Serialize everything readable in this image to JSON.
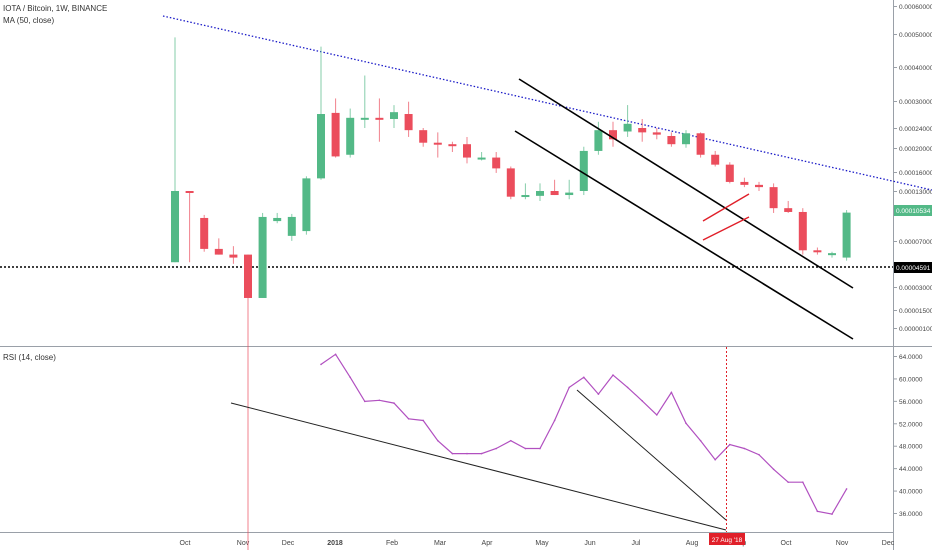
{
  "header": {
    "symbol": "IOTA / Bitcoin, 1W, BINANCE",
    "ma_label": "MA (50, close)",
    "rsi_label": "RSI (14, close)"
  },
  "price_axis": {
    "ticks": [
      "0.00060000",
      "0.00050000",
      "0.00040000",
      "0.00030000",
      "0.00024000",
      "0.00020000",
      "0.00016000",
      "0.00013000",
      "0.00007000",
      "0.00003000",
      "0.00001500",
      "0.00000100"
    ],
    "current_price": "0.00010534",
    "support_price": "0.00004591"
  },
  "rsi_axis": {
    "ticks": [
      "64.0000",
      "60.0000",
      "56.0000",
      "52.0000",
      "48.0000",
      "44.0000",
      "40.0000",
      "36.0000"
    ]
  },
  "time_axis": {
    "labels": [
      "Oct",
      "Nov",
      "Dec",
      "2018",
      "Feb",
      "Mar",
      "Apr",
      "May",
      "Jun",
      "Jul",
      "Aug",
      "Sep",
      "Oct",
      "Nov",
      "Dec"
    ],
    "cursor_label": "27 Aug '18"
  },
  "colors": {
    "up": "#53b987",
    "down": "#eb4d5c",
    "support_line": "#000000",
    "resistance_dotted": "#1c1cc8",
    "rsi_line": "#b150c0",
    "cursor": "#e0202a",
    "current_badge": "#53b987",
    "wedge": "#e0202a"
  },
  "chart_data": [
    {
      "type": "candlestick",
      "title": "IOTA / Bitcoin, 1W, BINANCE",
      "y_scale": "log",
      "series": [
        {
          "t": "Oct",
          "o": 6.5e-05,
          "h": 0.00058,
          "l": 6.5e-05,
          "c": 0.00013
        },
        {
          "t": "Oct",
          "o": 0.00013,
          "h": 0.00013,
          "l": 6.5e-05,
          "c": 0.000128
        },
        {
          "t": "Oct",
          "o": 0.0001,
          "h": 0.000103,
          "l": 7.2e-05,
          "c": 7.4e-05
        },
        {
          "t": "Nov",
          "o": 7.4e-05,
          "h": 8.2e-05,
          "l": 7e-05,
          "c": 7e-05
        },
        {
          "t": "Nov",
          "o": 7e-05,
          "h": 7.6e-05,
          "l": 6.4e-05,
          "c": 6.8e-05
        },
        {
          "t": "Nov",
          "o": 7e-05,
          "h": 7e-05,
          "l": 1.1e-06,
          "c": 4.59e-05
        },
        {
          "t": "Nov",
          "o": 4.59e-05,
          "h": 0.000105,
          "l": 4.59e-05,
          "c": 0.000101
        },
        {
          "t": "Nov",
          "o": 9.7e-05,
          "h": 0.000105,
          "l": 9.5e-05,
          "c": 0.0001
        },
        {
          "t": "Dec",
          "o": 8.4e-05,
          "h": 0.000104,
          "l": 8e-05,
          "c": 0.000101
        },
        {
          "t": "Dec",
          "o": 8.8e-05,
          "h": 0.00015,
          "l": 8.5e-05,
          "c": 0.000147
        },
        {
          "t": "Dec",
          "o": 0.000147,
          "h": 0.00053,
          "l": 0.000145,
          "c": 0.000275
        },
        {
          "t": "Dec",
          "o": 0.000278,
          "h": 0.00032,
          "l": 0.00018,
          "c": 0.000182
        },
        {
          "t": "Dec",
          "o": 0.000185,
          "h": 0.00029,
          "l": 0.00018,
          "c": 0.000265
        },
        {
          "t": "2018",
          "o": 0.000262,
          "h": 0.0004,
          "l": 0.00024,
          "c": 0.000265
        },
        {
          "t": "2018",
          "o": 0.000265,
          "h": 0.00032,
          "l": 0.00021,
          "c": 0.000262
        },
        {
          "t": "2018",
          "o": 0.000262,
          "h": 0.0003,
          "l": 0.00024,
          "c": 0.00028
        },
        {
          "t": "2018",
          "o": 0.000275,
          "h": 0.00031,
          "l": 0.00022,
          "c": 0.000235
        },
        {
          "t": "Feb",
          "o": 0.000235,
          "h": 0.00024,
          "l": 0.0002,
          "c": 0.000208
        },
        {
          "t": "Feb",
          "o": 0.000208,
          "h": 0.00023,
          "l": 0.00018,
          "c": 0.000205
        },
        {
          "t": "Feb",
          "o": 0.000205,
          "h": 0.00021,
          "l": 0.00019,
          "c": 0.000202
        },
        {
          "t": "Feb",
          "o": 0.000205,
          "h": 0.00022,
          "l": 0.00017,
          "c": 0.00018
        },
        {
          "t": "Mar",
          "o": 0.00018,
          "h": 0.00019,
          "l": 0.000175,
          "c": 0.00018
        },
        {
          "t": "Mar",
          "o": 0.00018,
          "h": 0.00019,
          "l": 0.000155,
          "c": 0.000162
        },
        {
          "t": "Mar",
          "o": 0.000162,
          "h": 0.000165,
          "l": 0.00012,
          "c": 0.000123
        },
        {
          "t": "Mar",
          "o": 0.000123,
          "h": 0.00014,
          "l": 0.00012,
          "c": 0.000125
        },
        {
          "t": "Apr",
          "o": 0.000124,
          "h": 0.00014,
          "l": 0.000118,
          "c": 0.00013
        },
        {
          "t": "Apr",
          "o": 0.00013,
          "h": 0.000145,
          "l": 0.000125,
          "c": 0.000125
        },
        {
          "t": "Apr",
          "o": 0.000125,
          "h": 0.000145,
          "l": 0.00012,
          "c": 0.000128
        },
        {
          "t": "Apr",
          "o": 0.00013,
          "h": 0.0002,
          "l": 0.000125,
          "c": 0.000192
        },
        {
          "t": "Apr",
          "o": 0.000192,
          "h": 0.000255,
          "l": 0.000185,
          "c": 0.000235
        },
        {
          "t": "May",
          "o": 0.000235,
          "h": 0.000255,
          "l": 0.0002,
          "c": 0.000215
        },
        {
          "t": "May",
          "o": 0.000232,
          "h": 0.0003,
          "l": 0.00022,
          "c": 0.00025
        },
        {
          "t": "May",
          "o": 0.00024,
          "h": 0.000262,
          "l": 0.00021,
          "c": 0.00023
        },
        {
          "t": "May",
          "o": 0.00023,
          "h": 0.00024,
          "l": 0.000215,
          "c": 0.000225
        },
        {
          "t": "Jun",
          "o": 0.000222,
          "h": 0.00023,
          "l": 0.0002,
          "c": 0.000205
        },
        {
          "t": "Jun",
          "o": 0.000205,
          "h": 0.000235,
          "l": 0.000198,
          "c": 0.000228
        },
        {
          "t": "Jun",
          "o": 0.000228,
          "h": 0.00023,
          "l": 0.00018,
          "c": 0.000185
        },
        {
          "t": "Jun",
          "o": 0.000185,
          "h": 0.000192,
          "l": 0.000165,
          "c": 0.000168
        },
        {
          "t": "Jul",
          "o": 0.000168,
          "h": 0.000172,
          "l": 0.00014,
          "c": 0.000142
        },
        {
          "t": "Jul",
          "o": 0.000142,
          "h": 0.000148,
          "l": 0.000135,
          "c": 0.000138
        },
        {
          "t": "Jul",
          "o": 0.000138,
          "h": 0.000142,
          "l": 0.00013,
          "c": 0.000135
        },
        {
          "t": "Jul",
          "o": 0.000135,
          "h": 0.00014,
          "l": 0.000105,
          "c": 0.00011
        },
        {
          "t": "Aug",
          "o": 0.00011,
          "h": 0.000118,
          "l": 0.000105,
          "c": 0.000106
        },
        {
          "t": "Aug",
          "o": 0.000106,
          "h": 0.00011,
          "l": 7e-05,
          "c": 7.3e-05
        },
        {
          "t": "Aug",
          "o": 7.3e-05,
          "h": 7.5e-05,
          "l": 7e-05,
          "c": 7.2e-05
        },
        {
          "t": "Aug",
          "o": 7e-05,
          "h": 7.2e-05,
          "l": 6.8e-05,
          "c": 7.1e-05
        },
        {
          "t": "Aug",
          "o": 6.8e-05,
          "h": 0.000108,
          "l": 6.6e-05,
          "c": 0.00010534
        }
      ]
    },
    {
      "type": "line",
      "title": "RSI (14, close)",
      "ylim": [
        34,
        65
      ],
      "x": [
        "Dec",
        "Dec",
        "Dec",
        "2018",
        "2018",
        "2018",
        "2018",
        "Feb",
        "Feb",
        "Feb",
        "Feb",
        "Mar",
        "Mar",
        "Mar",
        "Mar",
        "Apr",
        "Apr",
        "Apr",
        "Apr",
        "Apr",
        "May",
        "May",
        "May",
        "May",
        "Jun",
        "Jun",
        "Jun",
        "Jun",
        "Jul",
        "Jul",
        "Jul",
        "Jul",
        "Aug",
        "Aug",
        "Aug",
        "Aug",
        "Aug"
      ],
      "values": [
        62.5,
        64.3,
        60.2,
        55.9,
        56.1,
        55.6,
        52.8,
        52.5,
        48.9,
        46.6,
        46.6,
        46.6,
        47.5,
        48.9,
        47.5,
        47.5,
        52.5,
        58.4,
        60.2,
        57.2,
        60.6,
        58.4,
        56.0,
        53.5,
        57.5,
        52.0,
        48.9,
        45.5,
        48.2,
        47.5,
        46.4,
        43.8,
        41.5,
        41.5,
        36.3,
        35.8,
        40.3
      ]
    }
  ]
}
